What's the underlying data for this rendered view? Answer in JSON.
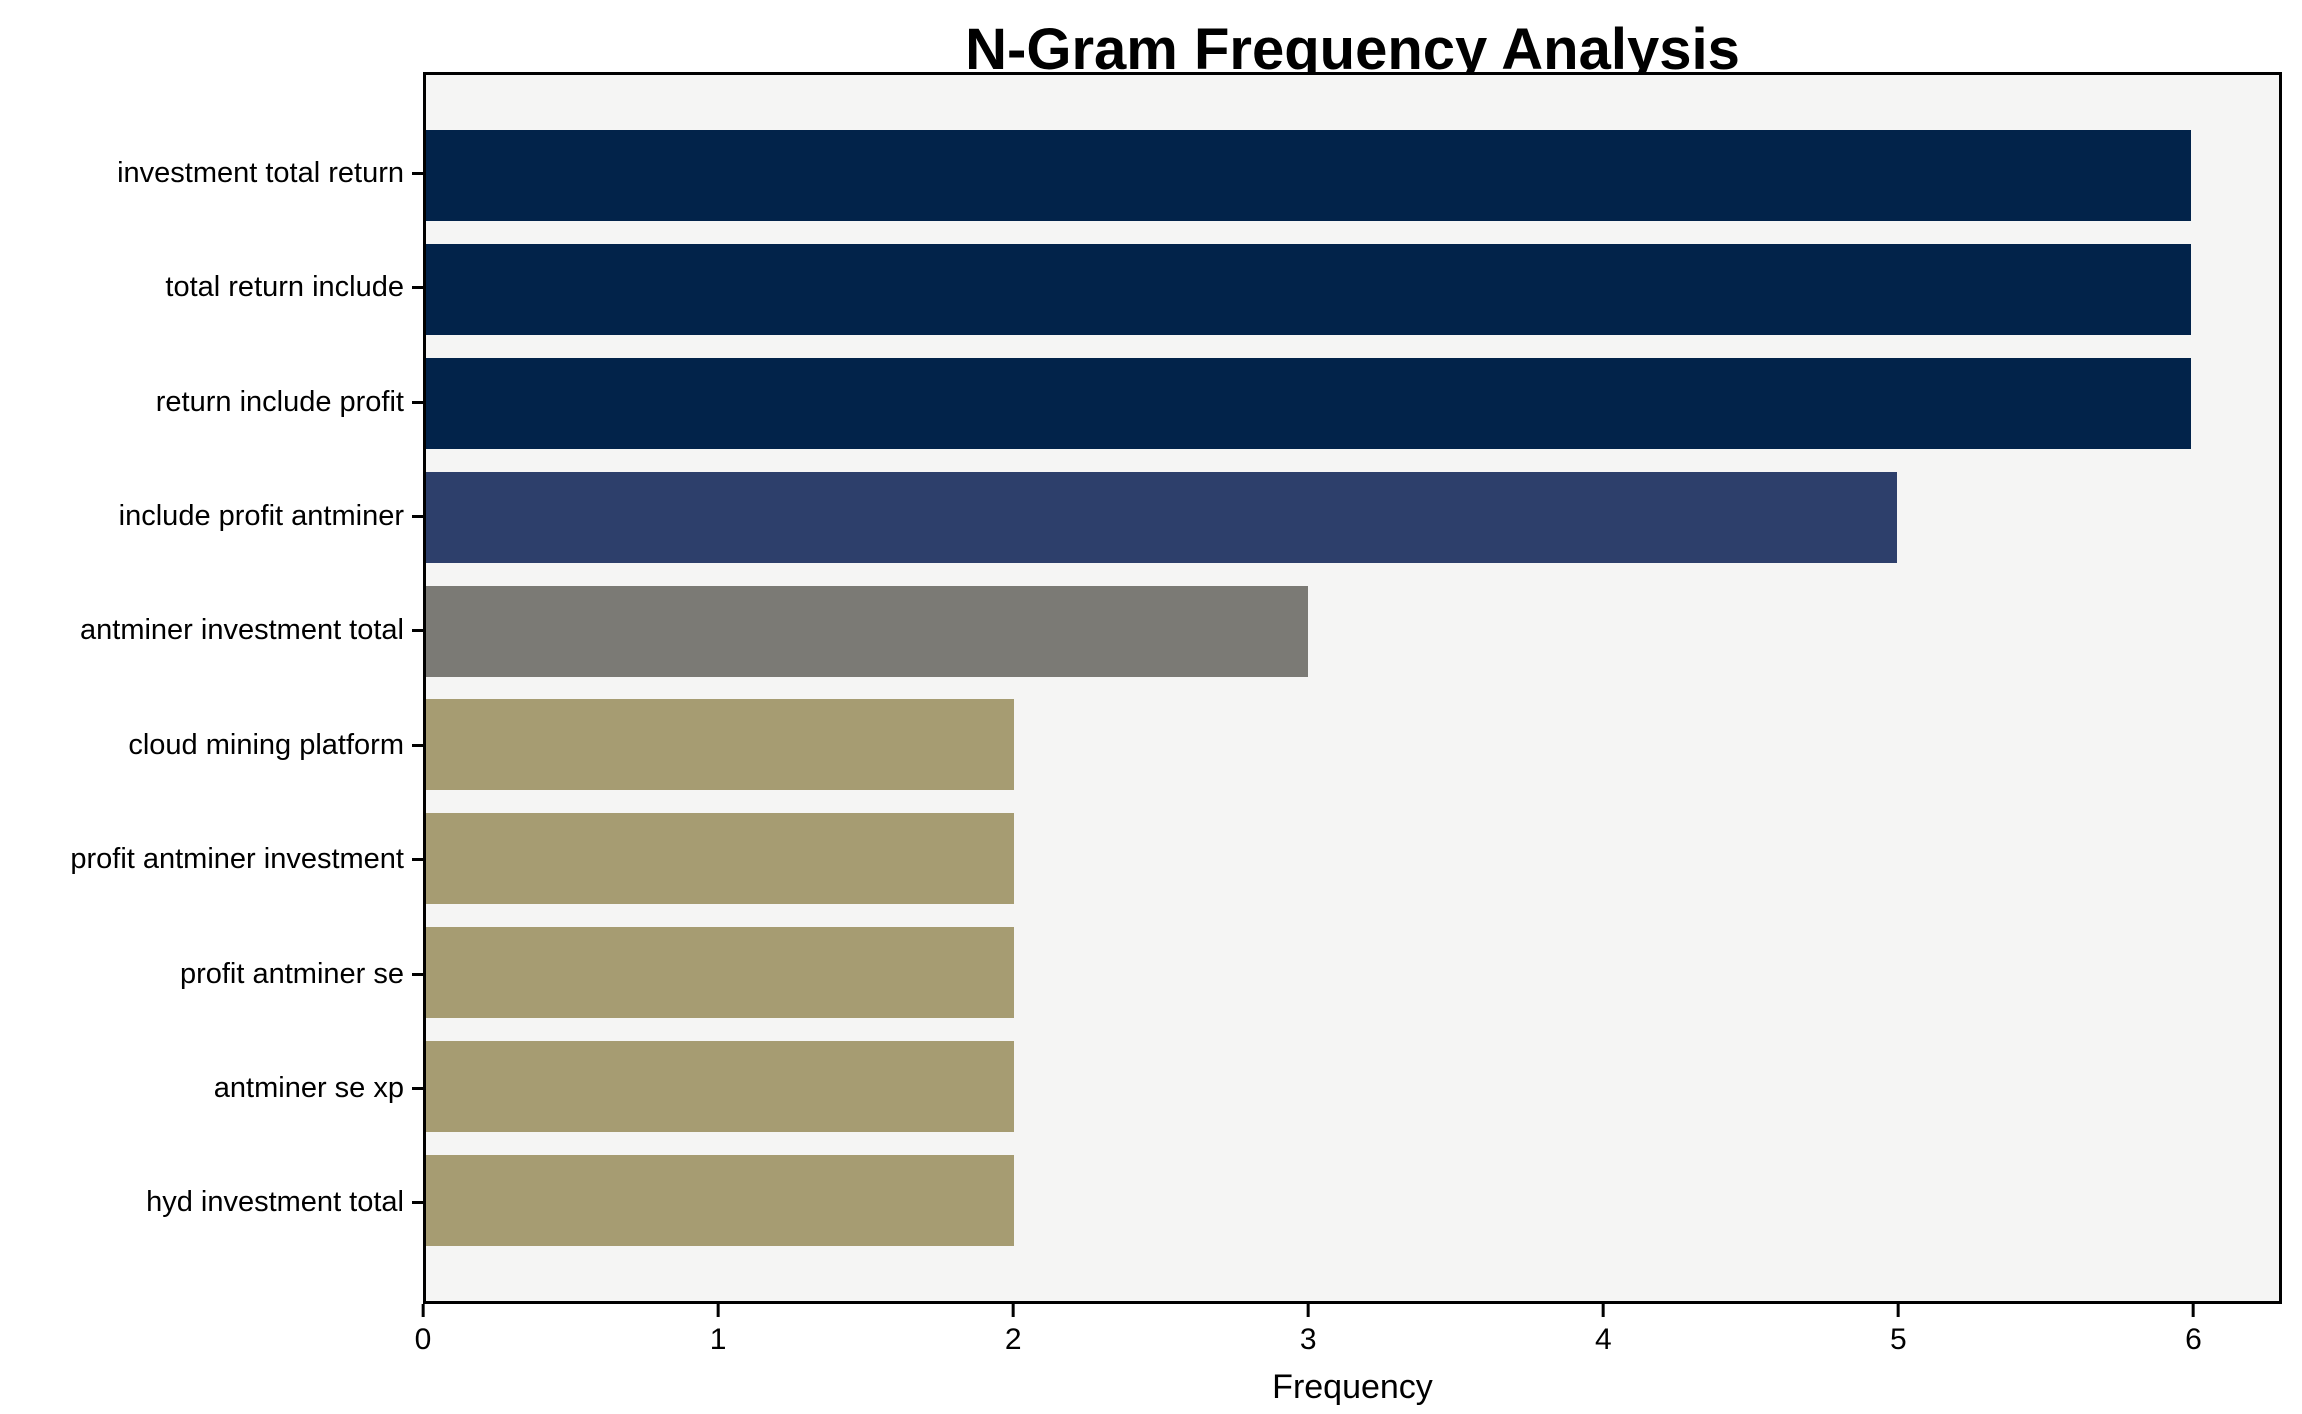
{
  "chart_data": {
    "type": "bar",
    "orientation": "horizontal",
    "title": "N-Gram Frequency Analysis",
    "xlabel": "Frequency",
    "ylabel": "",
    "categories": [
      "investment total return",
      "total return include",
      "return include profit",
      "include profit antminer",
      "antminer investment total",
      "cloud mining platform",
      "profit antminer investment",
      "profit antminer se",
      "antminer se xp",
      "hyd investment total"
    ],
    "values": [
      6,
      6,
      6,
      5,
      3,
      2,
      2,
      2,
      2,
      2
    ],
    "bar_colors": [
      "#02234A",
      "#02234A",
      "#02234A",
      "#2D3F6B",
      "#7B7A75",
      "#A69C72",
      "#A69C72",
      "#A69C72",
      "#A69C72",
      "#A69C72"
    ],
    "xticks": [
      0,
      1,
      2,
      3,
      4,
      5,
      6
    ],
    "xlim": [
      0,
      6.3
    ],
    "grid": false,
    "legend_position": "none",
    "colors": {
      "plot_background": "#F5F5F4",
      "figure_background": "#FFFFFF",
      "spine": "#000000",
      "text": "#000000"
    }
  }
}
